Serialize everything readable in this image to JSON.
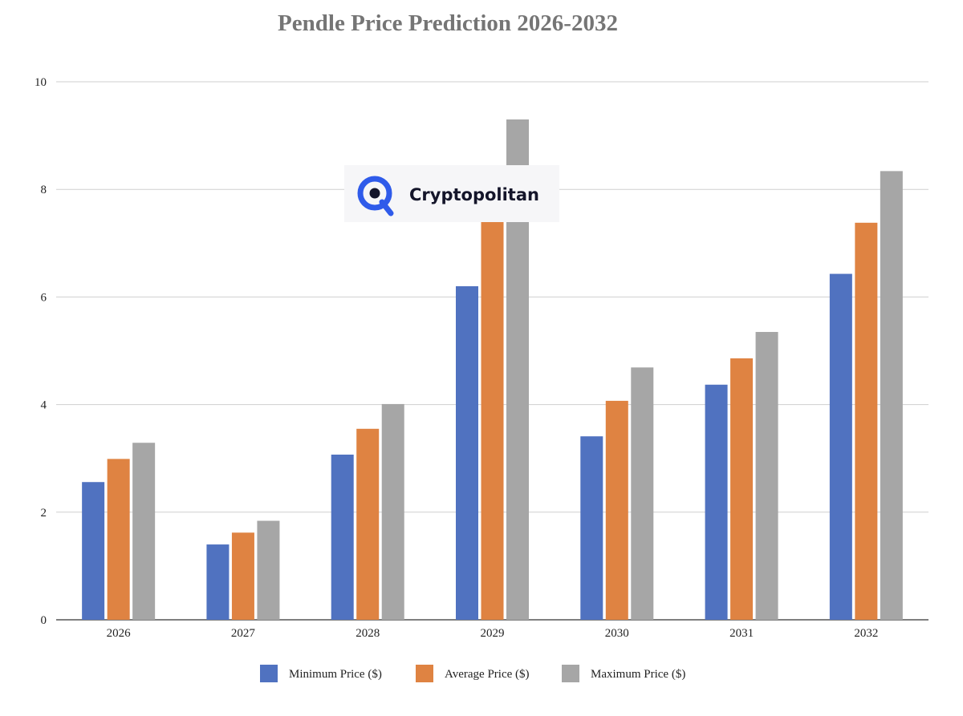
{
  "chart_data": {
    "type": "bar",
    "title": "Pendle Price Prediction 2026-2032",
    "xlabel": "",
    "ylabel": "",
    "categories": [
      "2026",
      "2027",
      "2028",
      "2029",
      "2030",
      "2031",
      "2032"
    ],
    "series": [
      {
        "name": "Minimum Price ($)",
        "color": "#5072c0",
        "values": [
          2.56,
          1.4,
          3.07,
          6.2,
          3.41,
          4.37,
          6.43
        ]
      },
      {
        "name": "Average Price ($)",
        "color": "#df8342",
        "values": [
          2.99,
          1.62,
          3.55,
          7.42,
          4.07,
          4.86,
          7.38
        ]
      },
      {
        "name": "Maximum Price ($)",
        "color": "#a6a6a6",
        "values": [
          3.29,
          1.84,
          4.01,
          9.3,
          4.69,
          5.35,
          8.34
        ]
      }
    ],
    "yticks": [
      "0",
      "2",
      "4",
      "6",
      "8",
      "10"
    ],
    "ylim": [
      0,
      10
    ],
    "grid": true,
    "legend_position": "bottom"
  },
  "watermark": {
    "text": "Cryptopolitan",
    "icon": "cryptopolitan-logo-icon",
    "color": "#2f5bea"
  }
}
